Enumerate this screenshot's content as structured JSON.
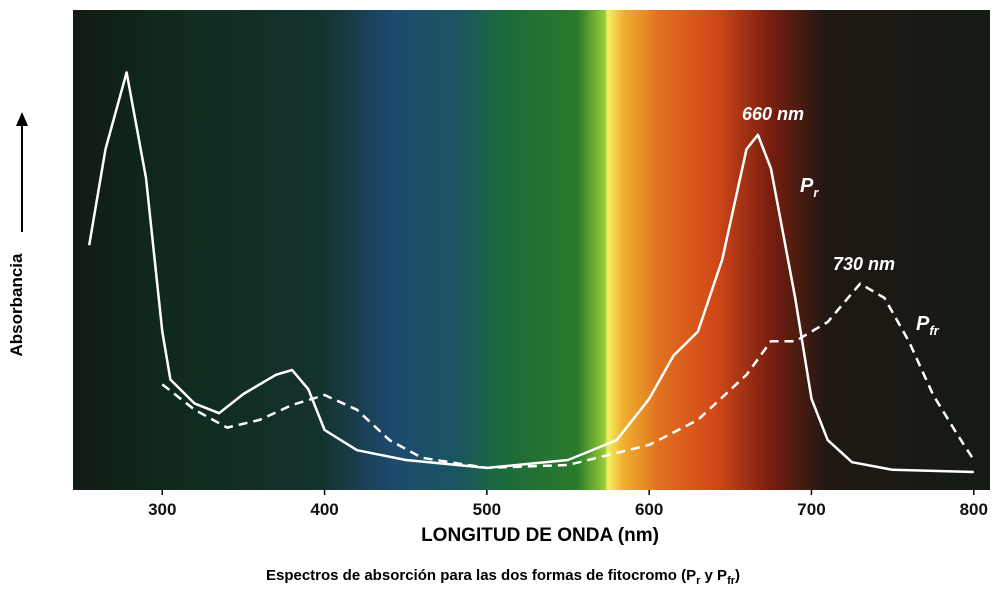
{
  "chart_data": {
    "type": "line",
    "y_label": "Absorbancia",
    "x_label": "LONGITUD DE ONDA (nm)",
    "caption": [
      {
        "text": "Espectros de absorción para las dos formas de fitocromo (P"
      },
      {
        "text": "r",
        "sub": true
      },
      {
        "text": " y P"
      },
      {
        "text": "fr",
        "sub": true
      },
      {
        "text": ")"
      }
    ],
    "xlim": [
      245,
      810
    ],
    "xticks": [
      300,
      400,
      500,
      600,
      700,
      800
    ],
    "ylim": [
      0,
      1
    ],
    "series": [
      {
        "label": "P",
        "label_sub": "r",
        "color": "#ffffff",
        "dash": false,
        "x": [
          255,
          265,
          278,
          290,
          300,
          305,
          320,
          335,
          350,
          370,
          380,
          390,
          400,
          420,
          450,
          500,
          550,
          580,
          600,
          615,
          630,
          645,
          660,
          667,
          675,
          690,
          700,
          710,
          725,
          750,
          800
        ],
        "values": [
          0.51,
          0.71,
          0.87,
          0.65,
          0.33,
          0.23,
          0.18,
          0.16,
          0.2,
          0.24,
          0.25,
          0.21,
          0.125,
          0.083,
          0.0625,
          0.046,
          0.0625,
          0.104,
          0.19,
          0.28,
          0.33,
          0.48,
          0.71,
          0.74,
          0.67,
          0.4,
          0.19,
          0.104,
          0.058,
          0.042,
          0.0375
        ]
      },
      {
        "label": "P",
        "label_sub": "fr",
        "color": "#ffffff",
        "dash": true,
        "x": [
          300,
          320,
          340,
          360,
          380,
          400,
          420,
          440,
          460,
          500,
          550,
          600,
          630,
          660,
          675,
          690,
          710,
          730,
          745,
          760,
          775,
          790,
          800
        ],
        "values": [
          0.22,
          0.167,
          0.13,
          0.146,
          0.177,
          0.198,
          0.167,
          0.104,
          0.067,
          0.046,
          0.052,
          0.094,
          0.146,
          0.24,
          0.31,
          0.31,
          0.35,
          0.43,
          0.4,
          0.31,
          0.198,
          0.115,
          0.0625
        ]
      }
    ],
    "annotations": [
      "660 nm",
      "730 nm"
    ]
  }
}
